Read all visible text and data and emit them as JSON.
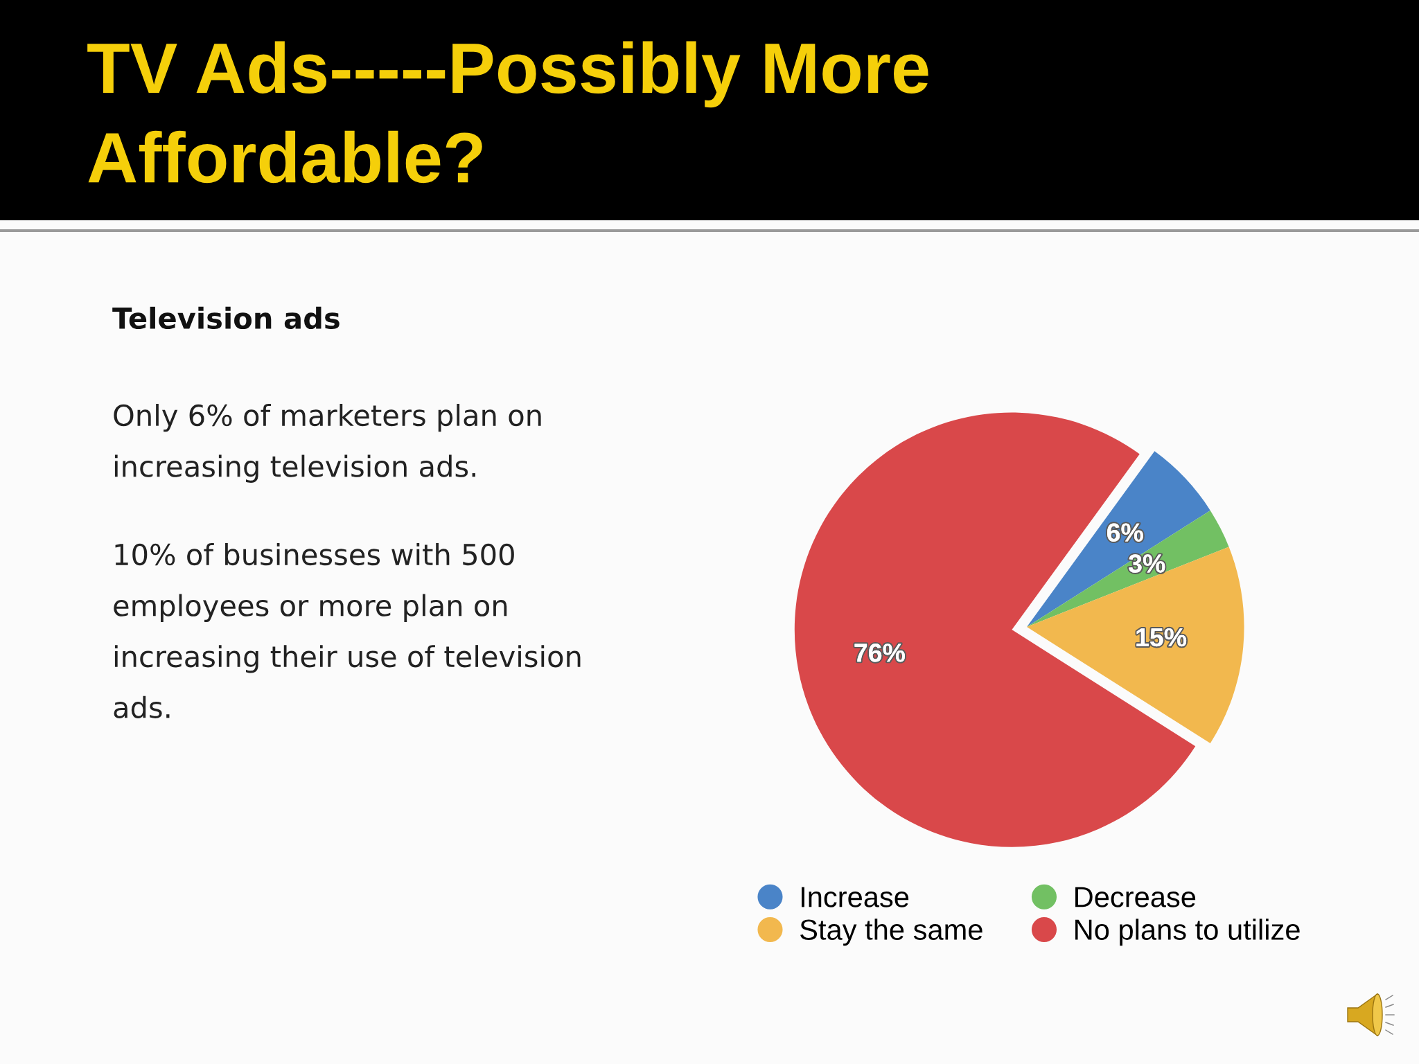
{
  "chart_data": {
    "type": "pie",
    "title": "TV Ads-----Possibly More\nAffordable?",
    "subtitle": "Television ads",
    "annotations": [
      "Only 6% of marketers plan on\nincreasing television ads.",
      "10% of businesses with 500\nemployees or more plan on\nincreasing their use of television\nads."
    ],
    "categories": [
      "Increase",
      "Decrease",
      "Stay the same",
      "No plans to utilize"
    ],
    "values": [
      6,
      3,
      15,
      76
    ],
    "colors": [
      "#4a84c8",
      "#72c063",
      "#f2b84e",
      "#d9484a"
    ],
    "value_labels": [
      "6%",
      "3%",
      "15%",
      "76%"
    ],
    "legend": "bottom",
    "marker": "circle"
  }
}
